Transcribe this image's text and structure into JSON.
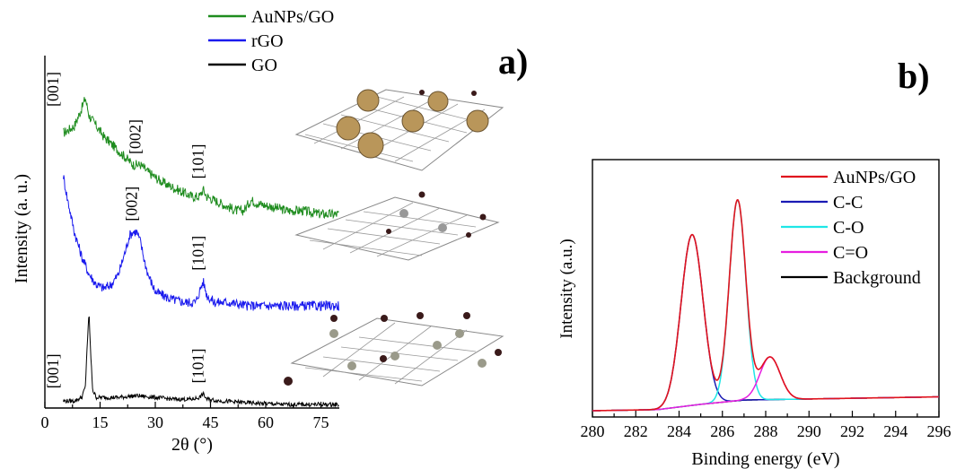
{
  "chart_data": [
    {
      "panel": "a)",
      "type": "line",
      "xlabel": "2θ (°)",
      "ylabel": "Intensity (a. u.)",
      "xlim": [
        0,
        80
      ],
      "xticks": [
        "0",
        "15",
        "30",
        "45",
        "60",
        "75"
      ],
      "yticks": [],
      "grid": false,
      "legend_position": "top-center",
      "series": [
        {
          "name": "AuNPs/GO",
          "color": "#1e8c1e",
          "x": [
            5,
            8,
            10,
            11,
            12,
            14,
            16,
            20,
            24,
            26,
            28,
            32,
            36,
            40,
            42,
            43,
            44,
            48,
            52,
            54,
            56,
            58,
            62,
            66,
            70,
            75,
            80
          ],
          "y": [
            0.78,
            0.8,
            0.85,
            0.88,
            0.83,
            0.8,
            0.77,
            0.73,
            0.69,
            0.69,
            0.67,
            0.64,
            0.62,
            0.6,
            0.6,
            0.62,
            0.6,
            0.58,
            0.56,
            0.56,
            0.59,
            0.58,
            0.57,
            0.56,
            0.56,
            0.55,
            0.55
          ]
        },
        {
          "name": "rGO",
          "color": "#1a1aee",
          "x": [
            5,
            6,
            8,
            10,
            12,
            14,
            16,
            18,
            20,
            22,
            23,
            24,
            25,
            26,
            27,
            28,
            30,
            34,
            38,
            41,
            43,
            44,
            46,
            50,
            55,
            60,
            70,
            80
          ],
          "y": [
            0.66,
            0.6,
            0.5,
            0.43,
            0.38,
            0.35,
            0.34,
            0.35,
            0.38,
            0.45,
            0.49,
            0.5,
            0.5,
            0.47,
            0.42,
            0.38,
            0.33,
            0.31,
            0.3,
            0.3,
            0.36,
            0.32,
            0.3,
            0.3,
            0.29,
            0.29,
            0.29,
            0.29
          ]
        },
        {
          "name": "GO",
          "color": "#000000",
          "x": [
            5,
            8,
            10,
            11,
            11.5,
            12,
            12.5,
            13,
            14,
            16,
            20,
            25,
            30,
            35,
            40,
            42,
            43,
            44,
            48,
            55,
            65,
            80
          ],
          "y": [
            0.02,
            0.02,
            0.03,
            0.06,
            0.18,
            0.27,
            0.14,
            0.05,
            0.03,
            0.03,
            0.03,
            0.035,
            0.03,
            0.025,
            0.025,
            0.03,
            0.04,
            0.025,
            0.02,
            0.015,
            0.01,
            0.01
          ]
        }
      ],
      "annotations": [
        {
          "text": "[001]",
          "x": 9,
          "series": "AuNPs/GO"
        },
        {
          "text": "[002]",
          "x": 26,
          "series": "AuNPs/GO"
        },
        {
          "text": "[101]",
          "x": 43,
          "series": "AuNPs/GO"
        },
        {
          "text": "[002]",
          "x": 25,
          "series": "rGO"
        },
        {
          "text": "[101]",
          "x": 43,
          "series": "rGO"
        },
        {
          "text": "[001]",
          "x": 9,
          "series": "GO"
        },
        {
          "text": "[101]",
          "x": 43,
          "series": "GO"
        }
      ]
    },
    {
      "panel": "b)",
      "type": "line",
      "xlabel": "Binding energy (eV)",
      "ylabel": "Intensity (a.u.)",
      "xlim": [
        280,
        296
      ],
      "xticks": [
        "280",
        "282",
        "284",
        "286",
        "288",
        "290",
        "292",
        "294",
        "296"
      ],
      "yticks": [],
      "grid": false,
      "legend_position": "top-right",
      "series": [
        {
          "name": "AuNPs/GO",
          "color": "#e0141e"
        },
        {
          "name": "C-C",
          "color": "#1a1ab4",
          "center": 284.6,
          "height": 0.8,
          "width": 1.2
        },
        {
          "name": "C-O",
          "color": "#1ee6e6",
          "center": 286.7,
          "height": 0.94,
          "width": 0.9
        },
        {
          "name": "C=O",
          "color": "#e61ee0",
          "center": 288.2,
          "height": 0.2,
          "width": 1.1
        },
        {
          "name": "Background",
          "color": "#000000",
          "x": [
            280,
            283,
            285,
            287,
            290,
            296
          ],
          "y": [
            0.0,
            0.005,
            0.03,
            0.05,
            0.055,
            0.065
          ]
        }
      ]
    }
  ]
}
